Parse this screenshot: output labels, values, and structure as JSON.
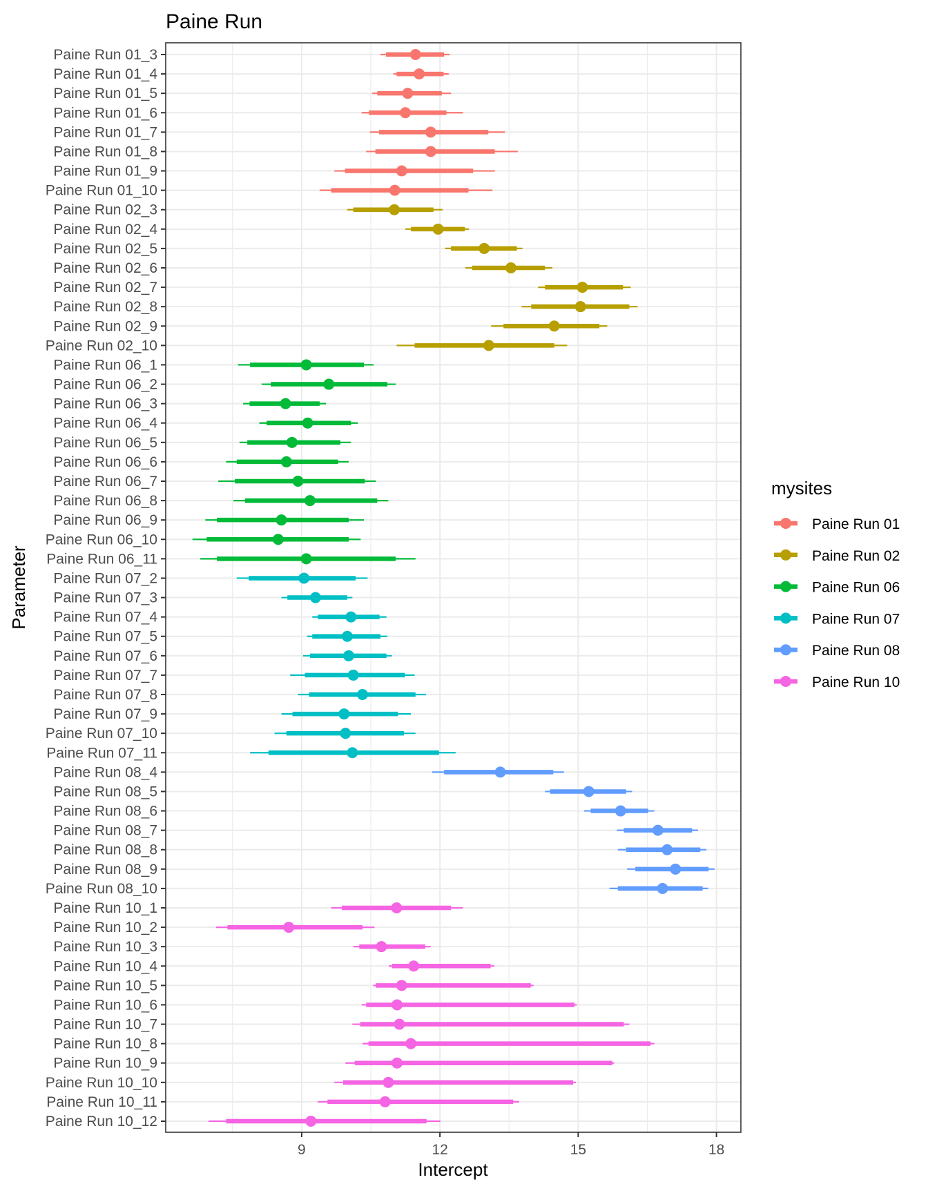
{
  "chart_data": {
    "type": "interval",
    "title": "Paine Run",
    "xlabel": "Intercept",
    "ylabel": "Parameter",
    "xlim": [
      6.05,
      18.53
    ],
    "xticks": [
      9,
      12,
      15,
      18
    ],
    "grid": true,
    "legend": {
      "title": "mysites",
      "placement": "right",
      "entries": [
        {
          "label": "Paine Run 01",
          "color": "#F8766D"
        },
        {
          "label": "Paine Run 02",
          "color": "#B79F00"
        },
        {
          "label": "Paine Run 06",
          "color": "#00BA38"
        },
        {
          "label": "Paine Run 07",
          "color": "#00BFC4"
        },
        {
          "label": "Paine Run 08",
          "color": "#619CFF"
        },
        {
          "label": "Paine Run 10",
          "color": "#F564E3"
        }
      ]
    },
    "columns": [
      "outer_low",
      "inner_low",
      "point",
      "inner_high",
      "outer_high"
    ],
    "rows": [
      {
        "label": "Paine Run 01_3",
        "group": 0,
        "v": [
          10.71,
          10.83,
          11.47,
          12.09,
          12.21
        ]
      },
      {
        "label": "Paine Run 01_4",
        "group": 0,
        "v": [
          10.99,
          11.06,
          11.55,
          12.08,
          12.19
        ]
      },
      {
        "label": "Paine Run 01_5",
        "group": 0,
        "v": [
          10.53,
          10.64,
          11.3,
          12.04,
          12.24
        ]
      },
      {
        "label": "Paine Run 01_6",
        "group": 0,
        "v": [
          10.3,
          10.46,
          11.25,
          12.14,
          12.5
        ]
      },
      {
        "label": "Paine Run 01_7",
        "group": 0,
        "v": [
          10.48,
          10.68,
          11.8,
          13.05,
          13.41
        ]
      },
      {
        "label": "Paine Run 01_8",
        "group": 0,
        "v": [
          10.4,
          10.6,
          11.8,
          13.19,
          13.69
        ]
      },
      {
        "label": "Paine Run 01_9",
        "group": 0,
        "v": [
          9.71,
          9.94,
          11.17,
          12.72,
          13.19
        ]
      },
      {
        "label": "Paine Run 01_10",
        "group": 0,
        "v": [
          9.39,
          9.64,
          11.02,
          12.62,
          13.14
        ]
      },
      {
        "label": "Paine Run 02_3",
        "group": 1,
        "v": [
          9.99,
          10.12,
          11.01,
          11.86,
          12.06
        ]
      },
      {
        "label": "Paine Run 02_4",
        "group": 1,
        "v": [
          11.25,
          11.37,
          11.96,
          12.54,
          12.63
        ]
      },
      {
        "label": "Paine Run 02_5",
        "group": 1,
        "v": [
          12.11,
          12.24,
          12.96,
          13.67,
          13.79
        ]
      },
      {
        "label": "Paine Run 02_6",
        "group": 1,
        "v": [
          12.55,
          12.7,
          13.54,
          14.28,
          14.44
        ]
      },
      {
        "label": "Paine Run 02_7",
        "group": 1,
        "v": [
          14.13,
          14.28,
          15.09,
          15.97,
          16.14
        ]
      },
      {
        "label": "Paine Run 02_8",
        "group": 1,
        "v": [
          13.77,
          13.98,
          15.05,
          16.11,
          16.29
        ]
      },
      {
        "label": "Paine Run 02_9",
        "group": 1,
        "v": [
          13.11,
          13.38,
          14.48,
          15.46,
          15.63
        ]
      },
      {
        "label": "Paine Run 02_10",
        "group": 1,
        "v": [
          11.06,
          11.45,
          13.06,
          14.48,
          14.76
        ]
      },
      {
        "label": "Paine Run 06_1",
        "group": 2,
        "v": [
          7.62,
          7.88,
          9.1,
          10.35,
          10.56
        ]
      },
      {
        "label": "Paine Run 06_2",
        "group": 2,
        "v": [
          8.13,
          8.33,
          9.59,
          10.86,
          11.04
        ]
      },
      {
        "label": "Paine Run 06_3",
        "group": 2,
        "v": [
          7.73,
          7.87,
          8.65,
          9.39,
          9.53
        ]
      },
      {
        "label": "Paine Run 06_4",
        "group": 2,
        "v": [
          8.08,
          8.24,
          9.13,
          10.07,
          10.22
        ]
      },
      {
        "label": "Paine Run 06_5",
        "group": 2,
        "v": [
          7.65,
          7.82,
          8.79,
          9.84,
          10.07
        ]
      },
      {
        "label": "Paine Run 06_6",
        "group": 2,
        "v": [
          7.36,
          7.59,
          8.67,
          9.79,
          10.02
        ]
      },
      {
        "label": "Paine Run 06_7",
        "group": 2,
        "v": [
          7.19,
          7.55,
          8.92,
          10.37,
          10.61
        ]
      },
      {
        "label": "Paine Run 06_8",
        "group": 2,
        "v": [
          7.52,
          7.77,
          9.18,
          10.64,
          10.88
        ]
      },
      {
        "label": "Paine Run 06_9",
        "group": 2,
        "v": [
          6.91,
          7.16,
          8.56,
          10.02,
          10.35
        ]
      },
      {
        "label": "Paine Run 06_10",
        "group": 2,
        "v": [
          6.63,
          6.94,
          8.49,
          10.02,
          10.28
        ]
      },
      {
        "label": "Paine Run 06_11",
        "group": 2,
        "v": [
          6.8,
          7.16,
          9.1,
          11.04,
          11.47
        ]
      },
      {
        "label": "Paine Run 07_2",
        "group": 3,
        "v": [
          7.59,
          7.85,
          9.05,
          10.17,
          10.43
        ]
      },
      {
        "label": "Paine Run 07_3",
        "group": 3,
        "v": [
          8.56,
          8.69,
          9.3,
          9.99,
          10.1
        ]
      },
      {
        "label": "Paine Run 07_4",
        "group": 3,
        "v": [
          9.23,
          9.35,
          10.07,
          10.69,
          10.84
        ]
      },
      {
        "label": "Paine Run 07_5",
        "group": 3,
        "v": [
          9.12,
          9.23,
          9.99,
          10.71,
          10.86
        ]
      },
      {
        "label": "Paine Run 07_6",
        "group": 3,
        "v": [
          9.03,
          9.18,
          10.02,
          10.84,
          10.96
        ]
      },
      {
        "label": "Paine Run 07_7",
        "group": 3,
        "v": [
          8.75,
          9.07,
          10.12,
          11.24,
          11.45
        ]
      },
      {
        "label": "Paine Run 07_8",
        "group": 3,
        "v": [
          8.92,
          9.16,
          10.32,
          11.47,
          11.7
        ]
      },
      {
        "label": "Paine Run 07_9",
        "group": 3,
        "v": [
          8.56,
          8.8,
          9.92,
          11.09,
          11.37
        ]
      },
      {
        "label": "Paine Run 07_10",
        "group": 3,
        "v": [
          8.41,
          8.67,
          9.95,
          11.22,
          11.47
        ]
      },
      {
        "label": "Paine Run 07_11",
        "group": 3,
        "v": [
          7.88,
          8.28,
          10.1,
          11.98,
          12.34
        ]
      },
      {
        "label": "Paine Run 08_4",
        "group": 4,
        "v": [
          11.83,
          12.09,
          13.31,
          14.46,
          14.69
        ]
      },
      {
        "label": "Paine Run 08_5",
        "group": 4,
        "v": [
          14.28,
          14.39,
          15.23,
          16.04,
          16.17
        ]
      },
      {
        "label": "Paine Run 08_6",
        "group": 4,
        "v": [
          15.13,
          15.27,
          15.92,
          16.52,
          16.65
        ]
      },
      {
        "label": "Paine Run 08_7",
        "group": 4,
        "v": [
          15.84,
          15.99,
          16.73,
          17.47,
          17.6
        ]
      },
      {
        "label": "Paine Run 08_8",
        "group": 4,
        "v": [
          15.86,
          16.04,
          16.93,
          17.65,
          17.78
        ]
      },
      {
        "label": "Paine Run 08_9",
        "group": 4,
        "v": [
          16.06,
          16.24,
          17.11,
          17.83,
          17.96
        ]
      },
      {
        "label": "Paine Run 08_10",
        "group": 4,
        "v": [
          15.68,
          15.86,
          16.83,
          17.7,
          17.82
        ]
      },
      {
        "label": "Paine Run 10_1",
        "group": 5,
        "v": [
          9.64,
          9.87,
          11.06,
          12.24,
          12.5
        ]
      },
      {
        "label": "Paine Run 10_2",
        "group": 5,
        "v": [
          7.14,
          7.39,
          8.72,
          10.32,
          10.58
        ]
      },
      {
        "label": "Paine Run 10_3",
        "group": 5,
        "v": [
          10.12,
          10.25,
          10.73,
          11.68,
          11.8
        ]
      },
      {
        "label": "Paine Run 10_4",
        "group": 5,
        "v": [
          10.89,
          10.96,
          11.43,
          13.1,
          13.18
        ]
      },
      {
        "label": "Paine Run 10_5",
        "group": 5,
        "v": [
          10.55,
          10.61,
          11.17,
          13.97,
          14.03
        ]
      },
      {
        "label": "Paine Run 10_6",
        "group": 5,
        "v": [
          10.3,
          10.4,
          11.07,
          14.92,
          14.97
        ]
      },
      {
        "label": "Paine Run 10_7",
        "group": 5,
        "v": [
          10.1,
          10.27,
          11.12,
          15.99,
          16.11
        ]
      },
      {
        "label": "Paine Run 10_8",
        "group": 5,
        "v": [
          10.32,
          10.45,
          11.37,
          16.57,
          16.65
        ]
      },
      {
        "label": "Paine Run 10_9",
        "group": 5,
        "v": [
          9.95,
          10.15,
          11.07,
          15.74,
          15.78
        ]
      },
      {
        "label": "Paine Run 10_10",
        "group": 5,
        "v": [
          9.71,
          9.9,
          10.88,
          14.89,
          14.95
        ]
      },
      {
        "label": "Paine Run 10_11",
        "group": 5,
        "v": [
          9.35,
          9.56,
          10.81,
          13.59,
          13.72
        ]
      },
      {
        "label": "Paine Run 10_12",
        "group": 5,
        "v": [
          6.98,
          7.36,
          9.2,
          11.71,
          12.01
        ]
      }
    ]
  }
}
